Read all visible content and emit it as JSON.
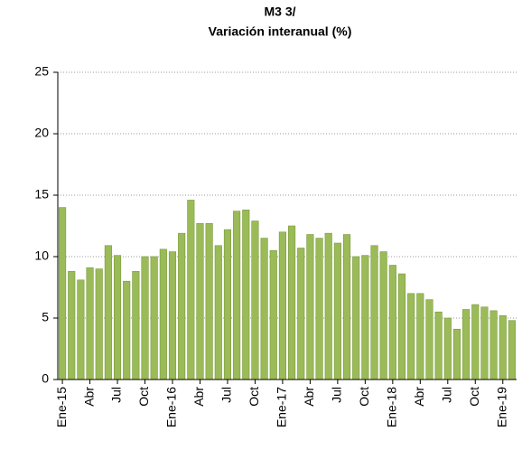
{
  "chart_data": {
    "type": "bar",
    "title": "M3 3/",
    "subtitle": "Variación interanual (%)",
    "categories": [
      "Ene-15",
      null,
      null,
      "Abr",
      null,
      null,
      "Jul",
      null,
      null,
      "Oct",
      null,
      null,
      "Ene-16",
      null,
      null,
      "Abr",
      null,
      null,
      "Jul",
      null,
      null,
      "Oct",
      null,
      null,
      "Ene-17",
      null,
      null,
      "Abr",
      null,
      null,
      "Jul",
      null,
      null,
      "Oct",
      null,
      null,
      "Ene-18",
      null,
      null,
      "Abr",
      null,
      null,
      "Jul",
      null,
      null,
      "Oct",
      null,
      null,
      "Ene-19",
      null
    ],
    "values": [
      14.0,
      8.8,
      8.1,
      9.1,
      9.0,
      10.9,
      10.1,
      8.0,
      8.8,
      10.0,
      10.0,
      10.6,
      10.4,
      11.9,
      14.6,
      12.7,
      12.7,
      10.9,
      12.2,
      13.7,
      13.8,
      12.9,
      11.5,
      10.5,
      12.0,
      12.5,
      10.7,
      11.8,
      11.5,
      11.9,
      11.1,
      11.8,
      10.0,
      10.1,
      10.9,
      10.4,
      9.3,
      8.6,
      7.0,
      7.0,
      6.5,
      5.5,
      5.0,
      4.1,
      5.7,
      6.1,
      5.9,
      5.6,
      5.2,
      4.8
    ],
    "color": "#9bbb59",
    "ylim": [
      0,
      25
    ],
    "yticks": [
      0,
      5,
      10,
      15,
      20,
      25
    ],
    "grid": true
  }
}
